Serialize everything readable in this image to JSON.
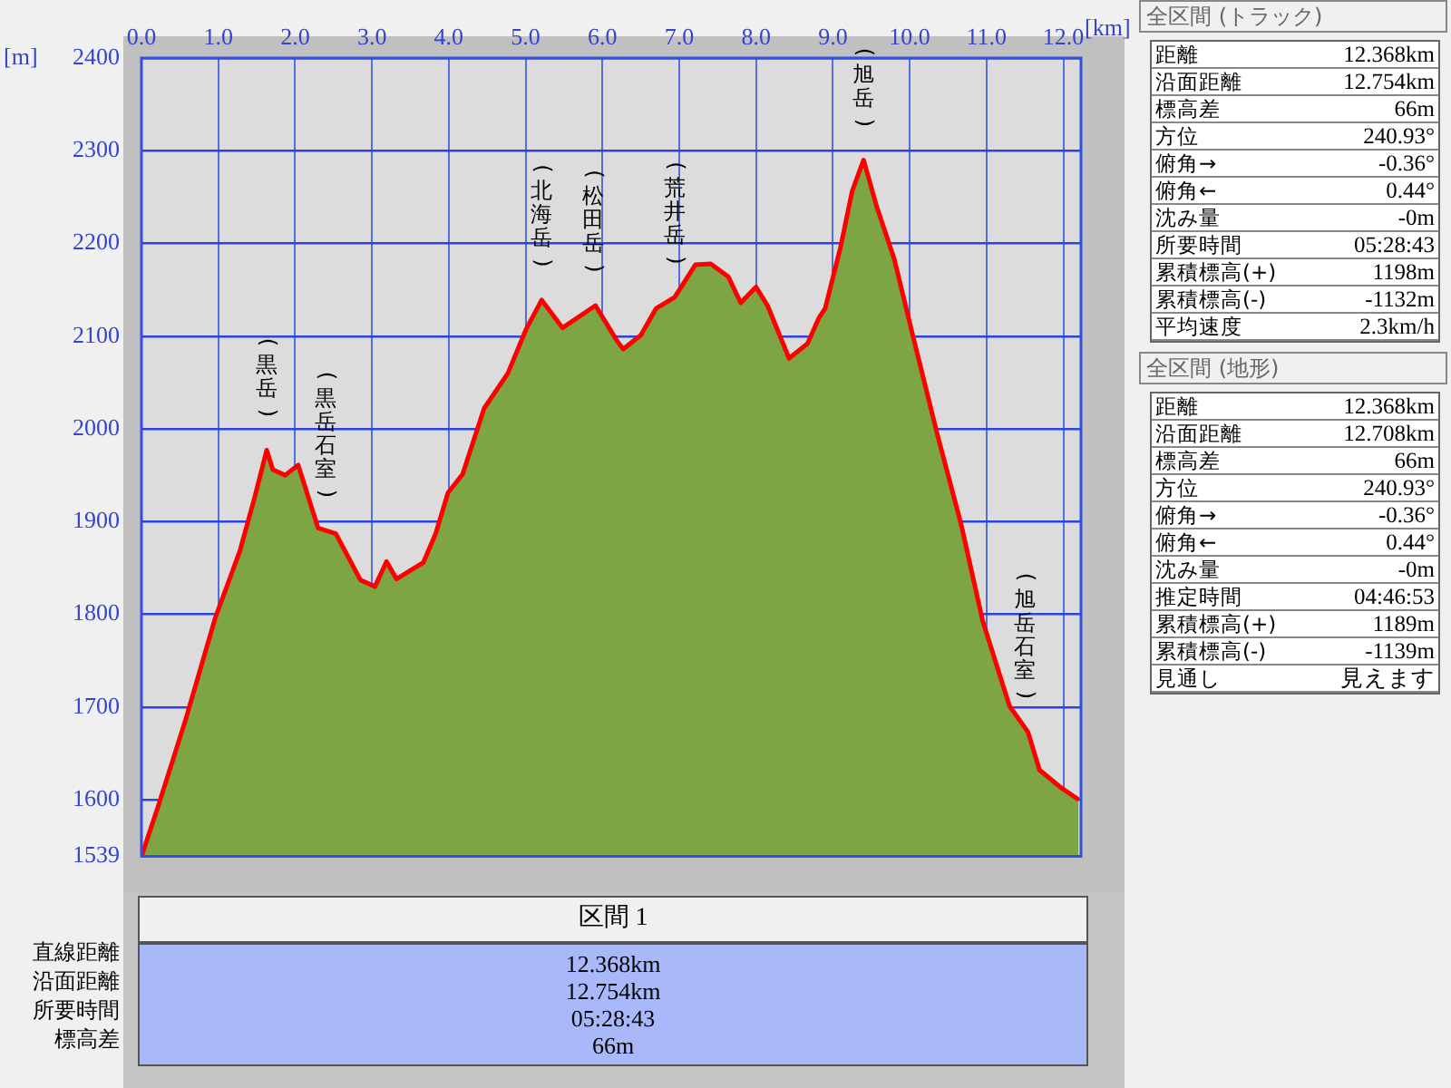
{
  "chart_data": {
    "type": "area",
    "xlabel": "[km]",
    "ylabel": "[m]",
    "xlim": [
      0,
      12.23
    ],
    "ylim": [
      1539,
      2400
    ],
    "xticks": [
      {
        "value": 0,
        "label": "0.0"
      },
      {
        "value": 1,
        "label": "1.0"
      },
      {
        "value": 2,
        "label": "2.0"
      },
      {
        "value": 3,
        "label": "3.0"
      },
      {
        "value": 4,
        "label": "4.0"
      },
      {
        "value": 5,
        "label": "5.0"
      },
      {
        "value": 6,
        "label": "6.0"
      },
      {
        "value": 7,
        "label": "7.0"
      },
      {
        "value": 8,
        "label": "8.0"
      },
      {
        "value": 9,
        "label": "9.0"
      },
      {
        "value": 10,
        "label": "10.0"
      },
      {
        "value": 11,
        "label": "11.0"
      },
      {
        "value": 12,
        "label": "12.0"
      }
    ],
    "yticks": [
      1539,
      1600,
      1700,
      1800,
      1900,
      2000,
      2100,
      2200,
      2300,
      2400
    ],
    "grid": true,
    "series": [
      {
        "color": "#7da544",
        "x": [
          0,
          0.21,
          0.57,
          0.96,
          1.28,
          1.47,
          1.63,
          1.71,
          1.87,
          2.04,
          2.3,
          2.53,
          2.85,
          3.04,
          3.19,
          3.32,
          3.67,
          3.83,
          3.99,
          4.18,
          4.46,
          4.77,
          5.01,
          5.21,
          5.48,
          5.91,
          6.19,
          6.27,
          6.5,
          6.7,
          6.94,
          7.21,
          7.41,
          7.64,
          7.8,
          8.0,
          8.15,
          8.43,
          8.67,
          8.82,
          8.9,
          9.1,
          9.25,
          9.4,
          9.57,
          9.8,
          10.04,
          10.36,
          10.67,
          10.95,
          11.3,
          11.54,
          11.69,
          11.97,
          12.2
        ],
        "values": [
          1539,
          1591,
          1685,
          1796,
          1868,
          1925,
          1977,
          1956,
          1950,
          1961,
          1893,
          1887,
          1837,
          1830,
          1857,
          1838,
          1856,
          1887,
          1931,
          1951,
          2022,
          2060,
          2108,
          2139,
          2109,
          2133,
          2095,
          2086,
          2101,
          2130,
          2142,
          2177,
          2178,
          2164,
          2136,
          2153,
          2133,
          2076,
          2092,
          2120,
          2130,
          2196,
          2256,
          2290,
          2240,
          2183,
          2101,
          1994,
          1897,
          1793,
          1701,
          1673,
          1632,
          1613,
          1600
        ]
      }
    ],
    "annotations": [
      {
        "text": "(黒岳)",
        "x": 1.63,
        "y": 1977
      },
      {
        "text": "(黒岳石室)",
        "x": 2.4,
        "y": 1890
      },
      {
        "text": "(北海岳)",
        "x": 5.21,
        "y": 2139
      },
      {
        "text": "(松田岳)",
        "x": 5.88,
        "y": 2133
      },
      {
        "text": "(荒井岳)",
        "x": 6.94,
        "y": 2142
      },
      {
        "text": "(旭岳)",
        "x": 9.4,
        "y": 2290
      },
      {
        "text": "(旭岳石室)",
        "x": 11.5,
        "y": 1673
      },
      "全区間 (トラック)",
      "距離",
      "12.368km",
      "沿面距離",
      "12.754km",
      "標高差",
      "66m",
      "方位",
      "240.93°",
      "俯角→",
      "-0.36°",
      "俯角←",
      "0.44°",
      "沈み量",
      "-0m",
      "所要時間",
      "05:28:43",
      "累積標高(+)",
      "1198m",
      "累積標高(-)",
      "-1132m",
      "平均速度",
      "2.3km/h",
      "全区間 (地形)",
      "距離",
      "12.368km",
      "沿面距離",
      "12.708km",
      "標高差",
      "66m",
      "方位",
      "240.93°",
      "俯角→",
      "-0.36°",
      "俯角←",
      "0.44°",
      "沈み量",
      "-0m",
      "推定時間",
      "04:46:53",
      "累積標高(+)",
      "1189m",
      "累積標高(-)",
      "-1139m",
      "見通し",
      "見えます",
      "区間 1",
      "直線距離",
      "12.368km",
      "沿面距離",
      "12.754km",
      "所要時間",
      "05:28:43",
      "標高差",
      "66m"
    ]
  }
}
